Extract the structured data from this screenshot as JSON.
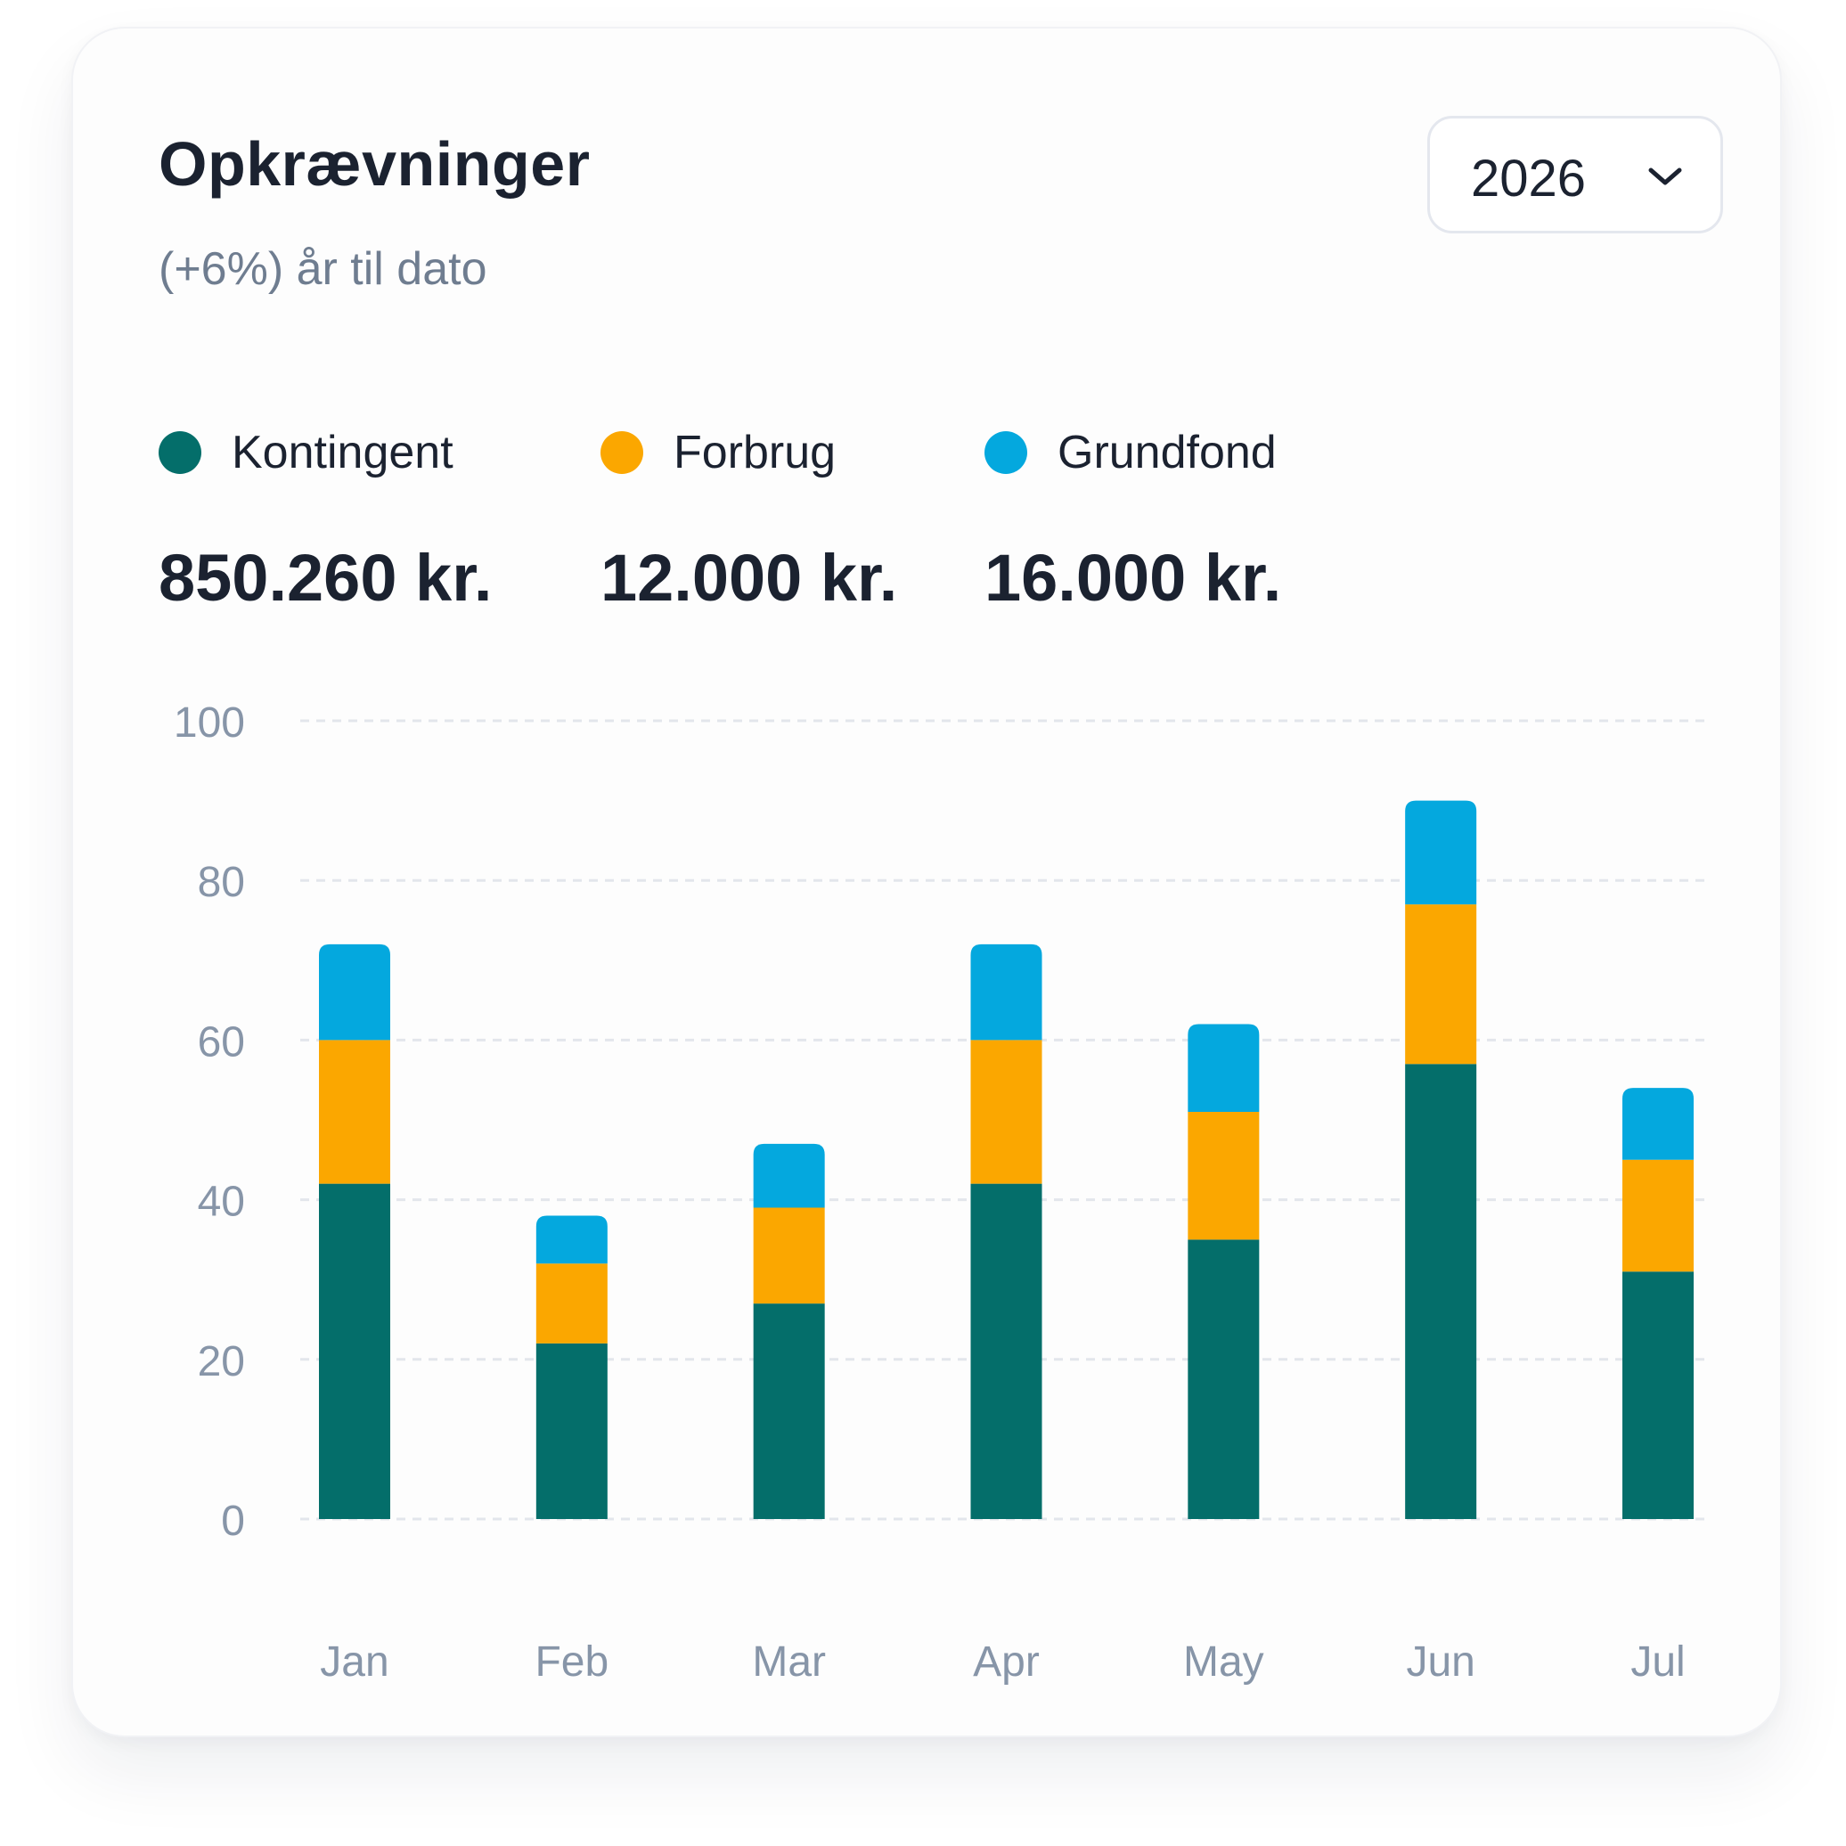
{
  "header": {
    "title": "Opkrævninger",
    "subtitle": "(+6%) år til dato",
    "year_select": {
      "value": "2026",
      "icon": "chevron-down-icon"
    }
  },
  "legend": [
    {
      "label": "Kontingent",
      "amount": "850.260 kr.",
      "color": "#046e6a"
    },
    {
      "label": "Forbrug",
      "amount": "12.000 kr.",
      "color": "#fba700"
    },
    {
      "label": "Grundfond",
      "amount": "16.000 kr.",
      "color": "#04a8de"
    }
  ],
  "chart_data": {
    "type": "bar",
    "stacked": true,
    "categories": [
      "Jan",
      "Feb",
      "Mar",
      "Apr",
      "May",
      "Jun",
      "Jul"
    ],
    "series": [
      {
        "name": "Kontingent",
        "color": "#046e6a",
        "values": [
          42,
          22,
          27,
          42,
          35,
          57,
          31
        ]
      },
      {
        "name": "Forbrug",
        "color": "#fba700",
        "values": [
          18,
          10,
          12,
          18,
          16,
          20,
          14
        ]
      },
      {
        "name": "Grundfond",
        "color": "#04a8de",
        "values": [
          12,
          6,
          8,
          12,
          11,
          13,
          9
        ]
      }
    ],
    "yticks": [
      "0",
      "20",
      "40",
      "60",
      "80",
      "100"
    ],
    "ylim": [
      0,
      100
    ],
    "grid": true,
    "title": "",
    "xlabel": "",
    "ylabel": ""
  }
}
